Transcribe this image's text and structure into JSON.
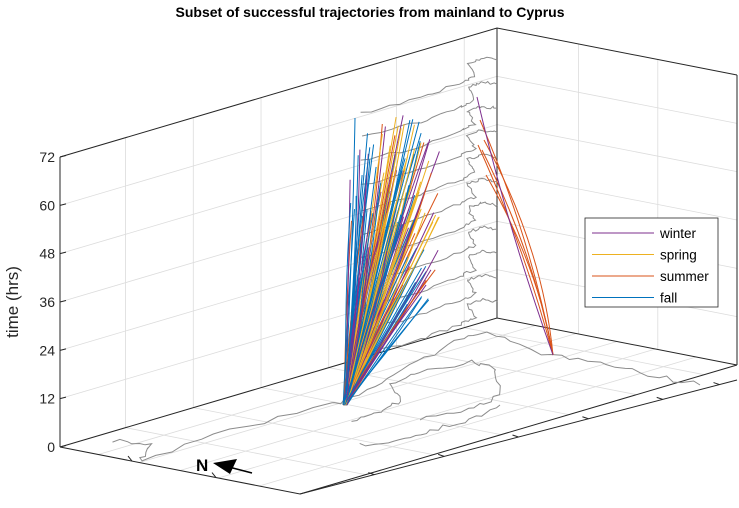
{
  "chart_data": {
    "type": "line",
    "projection": "3d",
    "title": "Subset of successful trajectories from mainland to Cyprus",
    "zlabel": "time (hrs)",
    "zlim": [
      0,
      72
    ],
    "zticks": [
      "0",
      "12",
      "24",
      "36",
      "48",
      "60",
      "72"
    ],
    "grid": true,
    "legend_position": "right",
    "series": [
      {
        "name": "winter",
        "color": "#7E2F8E",
        "trajectories": 30
      },
      {
        "name": "spring",
        "color": "#EDB120",
        "trajectories": 30
      },
      {
        "name": "summer",
        "color": "#D95319",
        "trajectories": 18
      },
      {
        "name": "fall",
        "color": "#0072BD",
        "trajectories": 60
      }
    ],
    "coastline_color": "#8c8c8c",
    "annotation": {
      "north_label": "N"
    }
  }
}
